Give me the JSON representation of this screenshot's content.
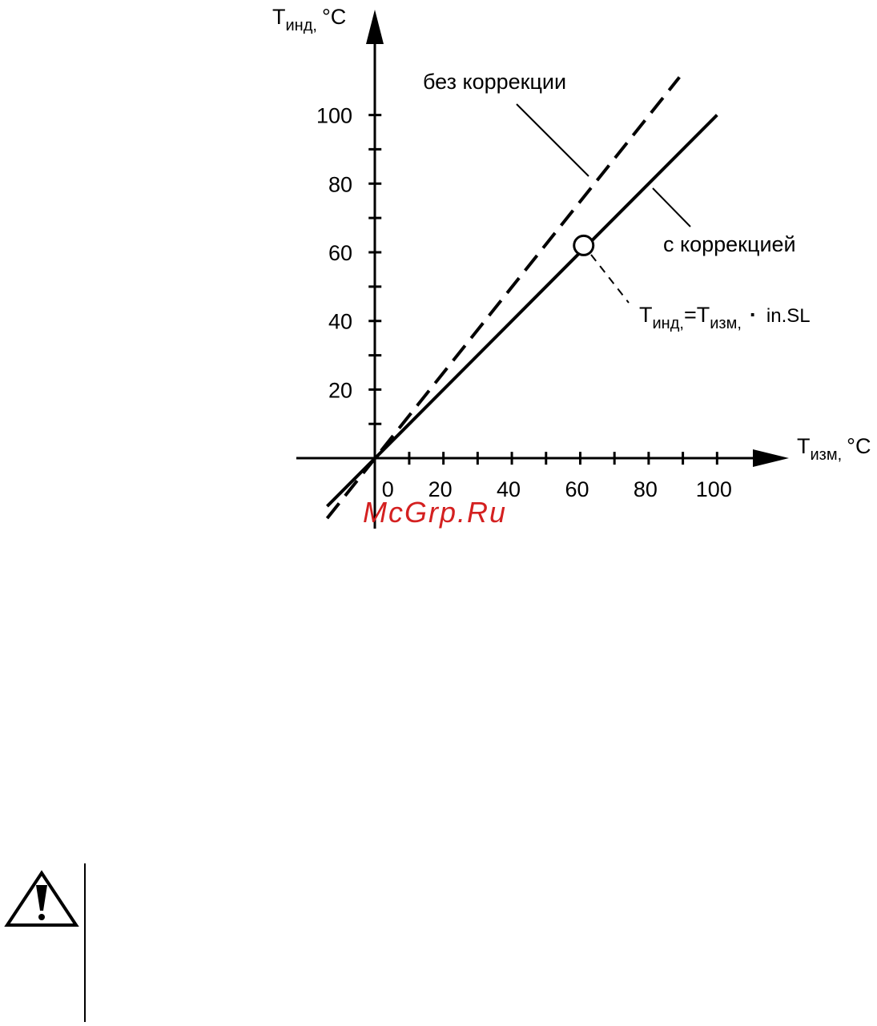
{
  "chart_data": {
    "type": "line",
    "x_label": {
      "main": "T",
      "sub": "изм,",
      "unit": "°C"
    },
    "y_label": {
      "main": "T",
      "sub": "инд,",
      "unit": "°C"
    },
    "series": [
      {
        "name": "без коррекции",
        "color": "#000000",
        "dash": true,
        "x": [
          -14,
          89
        ],
        "values": [
          -17.5,
          111
        ]
      },
      {
        "name": "с коррекцией",
        "color": "#000000",
        "dash": false,
        "x": [
          -14,
          100
        ],
        "values": [
          -14,
          100
        ]
      }
    ],
    "marker": {
      "x": 61,
      "y": 62
    },
    "formula": {
      "lhs_main": "T",
      "lhs_sub": "инд,",
      "eq": "=",
      "rhs_main": "T",
      "rhs_sub": "изм,",
      "dot": "·",
      "factor": "in.SL"
    },
    "xlim": [
      -23,
      121
    ],
    "ylim": [
      -20.5,
      130
    ],
    "xticks": [
      0,
      20,
      40,
      60,
      80,
      100
    ],
    "xminorticks": [
      10,
      30,
      50,
      70,
      90
    ],
    "yticks": [
      20,
      40,
      60,
      80,
      100
    ],
    "yminorticks": [
      10,
      30,
      50,
      70,
      90
    ],
    "watermark": "McGrp.Ru"
  }
}
